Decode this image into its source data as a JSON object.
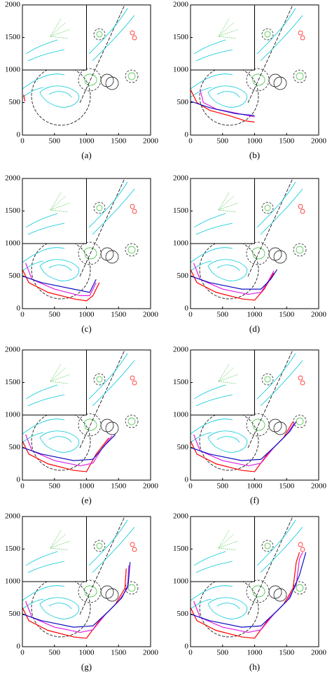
{
  "chart_data": [
    {
      "type": "line",
      "caption": "(a)",
      "xlim": [
        0,
        2000
      ],
      "ylim": [
        0,
        2000
      ],
      "xticks": [
        0,
        500,
        1000,
        1500,
        2000
      ],
      "yticks": [
        0,
        500,
        1000,
        1500,
        2000
      ],
      "series": [
        {
          "color": "#ff0000",
          "x": [
            20,
            30,
            40
          ],
          "values": [
            620,
            560,
            520
          ]
        }
      ]
    },
    {
      "type": "line",
      "caption": "(b)",
      "xlim": [
        0,
        2000
      ],
      "ylim": [
        0,
        2000
      ],
      "xticks": [
        0,
        500,
        1000,
        1500,
        2000
      ],
      "yticks": [
        0,
        500,
        1000,
        1500,
        2000
      ],
      "series": [
        {
          "color": "#ff0000",
          "x": [
            0,
            100,
            300,
            600,
            850,
            1000
          ],
          "values": [
            700,
            500,
            380,
            300,
            220,
            200
          ]
        },
        {
          "color": "#e020e0",
          "x": [
            150,
            200,
            400,
            700,
            900,
            1000
          ],
          "values": [
            700,
            500,
            400,
            340,
            300,
            280
          ]
        },
        {
          "color": "#1010c0",
          "x": [
            0,
            300,
            700,
            1000
          ],
          "values": [
            520,
            420,
            330,
            300
          ]
        }
      ]
    },
    {
      "type": "line",
      "caption": "(c)",
      "xlim": [
        0,
        2000
      ],
      "ylim": [
        0,
        2000
      ],
      "xticks": [
        0,
        500,
        1000,
        1500,
        2000
      ],
      "yticks": [
        0,
        500,
        1000,
        1500,
        2000
      ],
      "series": [
        {
          "color": "#ff0000",
          "x": [
            0,
            100,
            400,
            800,
            1000,
            1100,
            1200
          ],
          "values": [
            600,
            400,
            250,
            150,
            120,
            200,
            400
          ]
        },
        {
          "color": "#e020e0",
          "x": [
            50,
            150,
            500,
            900,
            1050,
            1150
          ],
          "values": [
            700,
            450,
            300,
            200,
            200,
            400
          ]
        },
        {
          "color": "#1010c0",
          "x": [
            0,
            300,
            800,
            1050,
            1150
          ],
          "values": [
            500,
            400,
            300,
            250,
            450
          ]
        }
      ]
    },
    {
      "type": "line",
      "caption": "(d)",
      "xlim": [
        0,
        2000
      ],
      "ylim": [
        0,
        2000
      ],
      "xticks": [
        0,
        500,
        1000,
        1500,
        2000
      ],
      "yticks": [
        0,
        500,
        1000,
        1500,
        2000
      ],
      "series": [
        {
          "color": "#ff0000",
          "x": [
            0,
            100,
            400,
            800,
            1000,
            1150,
            1300
          ],
          "values": [
            600,
            400,
            250,
            150,
            130,
            300,
            550
          ]
        },
        {
          "color": "#e020e0",
          "x": [
            50,
            150,
            500,
            900,
            1100,
            1200,
            1300
          ],
          "values": [
            700,
            450,
            300,
            220,
            250,
            400,
            580
          ]
        },
        {
          "color": "#1010c0",
          "x": [
            0,
            300,
            800,
            1100,
            1250,
            1350
          ],
          "values": [
            500,
            400,
            300,
            300,
            450,
            600
          ]
        }
      ]
    },
    {
      "type": "line",
      "caption": "(e)",
      "xlim": [
        0,
        2000
      ],
      "ylim": [
        0,
        2000
      ],
      "xticks": [
        0,
        500,
        1000,
        1500,
        2000
      ],
      "yticks": [
        0,
        500,
        1000,
        1500,
        2000
      ],
      "series": [
        {
          "color": "#ff0000",
          "x": [
            0,
            100,
            400,
            800,
            1000,
            1150,
            1350
          ],
          "values": [
            600,
            400,
            250,
            150,
            130,
            400,
            650
          ]
        },
        {
          "color": "#e020e0",
          "x": [
            50,
            150,
            500,
            900,
            1100,
            1250,
            1400
          ],
          "values": [
            700,
            450,
            300,
            220,
            260,
            500,
            680
          ]
        },
        {
          "color": "#1010c0",
          "x": [
            0,
            300,
            800,
            1100,
            1300,
            1450
          ],
          "values": [
            500,
            400,
            300,
            320,
            550,
            700
          ]
        }
      ]
    },
    {
      "type": "line",
      "caption": "(f)",
      "xlim": [
        0,
        2000
      ],
      "ylim": [
        0,
        2000
      ],
      "xticks": [
        0,
        500,
        1000,
        1500,
        2000
      ],
      "yticks": [
        0,
        500,
        1000,
        1500,
        2000
      ],
      "series": [
        {
          "color": "#ff0000",
          "x": [
            0,
            100,
            400,
            800,
            1000,
            1200,
            1450,
            1600
          ],
          "values": [
            600,
            400,
            250,
            150,
            130,
            400,
            650,
            900
          ]
        },
        {
          "color": "#e020e0",
          "x": [
            50,
            150,
            500,
            900,
            1100,
            1300,
            1500,
            1620
          ],
          "values": [
            700,
            450,
            300,
            220,
            260,
            500,
            700,
            880
          ]
        },
        {
          "color": "#1010c0",
          "x": [
            0,
            300,
            800,
            1100,
            1350,
            1550,
            1650
          ],
          "values": [
            500,
            400,
            300,
            320,
            550,
            750,
            900
          ]
        }
      ]
    },
    {
      "type": "line",
      "caption": "(g)",
      "xlim": [
        0,
        2000
      ],
      "ylim": [
        0,
        2000
      ],
      "xticks": [
        0,
        500,
        1000,
        1500,
        2000
      ],
      "yticks": [
        0,
        500,
        1000,
        1500,
        2000
      ],
      "series": [
        {
          "color": "#ff0000",
          "x": [
            0,
            100,
            400,
            800,
            1000,
            1200,
            1450,
            1600,
            1620
          ],
          "values": [
            600,
            400,
            250,
            150,
            130,
            400,
            650,
            900,
            1200
          ]
        },
        {
          "color": "#e020e0",
          "x": [
            50,
            150,
            500,
            900,
            1100,
            1300,
            1500,
            1640,
            1660
          ],
          "values": [
            700,
            450,
            300,
            220,
            260,
            500,
            700,
            900,
            1250
          ]
        },
        {
          "color": "#1010c0",
          "x": [
            0,
            300,
            800,
            1100,
            1350,
            1550,
            1650,
            1680
          ],
          "values": [
            500,
            400,
            300,
            320,
            550,
            750,
            950,
            1300
          ]
        }
      ]
    },
    {
      "type": "line",
      "caption": "(h)",
      "xlim": [
        0,
        2000
      ],
      "ylim": [
        0,
        2000
      ],
      "xticks": [
        0,
        500,
        1000,
        1500,
        2000
      ],
      "yticks": [
        0,
        500,
        1000,
        1500,
        2000
      ],
      "series": [
        {
          "color": "#ff0000",
          "x": [
            0,
            100,
            400,
            800,
            1000,
            1200,
            1450,
            1600,
            1650,
            1700
          ],
          "values": [
            600,
            400,
            250,
            150,
            130,
            400,
            650,
            900,
            1300,
            1450
          ]
        },
        {
          "color": "#e020e0",
          "x": [
            50,
            150,
            500,
            900,
            1100,
            1300,
            1500,
            1650,
            1700,
            1750
          ],
          "values": [
            700,
            450,
            300,
            220,
            260,
            500,
            700,
            950,
            1350,
            1450
          ]
        },
        {
          "color": "#1010c0",
          "x": [
            0,
            300,
            800,
            1100,
            1350,
            1550,
            1700,
            1800
          ],
          "values": [
            500,
            400,
            300,
            320,
            550,
            750,
            1100,
            1450
          ]
        }
      ]
    }
  ]
}
